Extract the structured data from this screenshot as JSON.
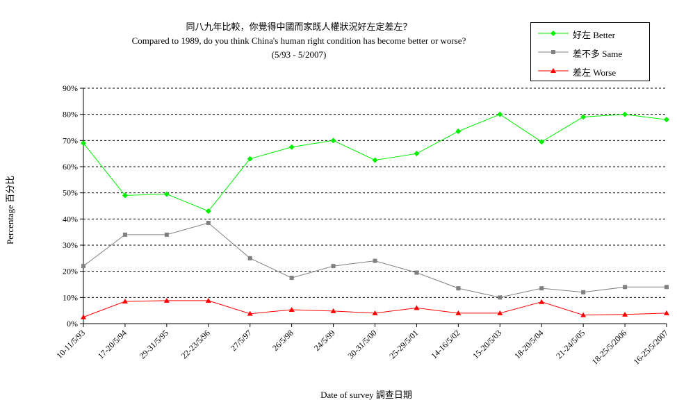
{
  "chart_data": {
    "type": "line",
    "title": "同八九年比較，你覺得中國而家既人權狀況好左定差左？",
    "subtitle": "Compared to 1989, do you think China's human right condition has become better or worse?",
    "period": "(5/93 - 5/2007)",
    "xlabel": "Date of survey  調查日期",
    "ylabel": "Percentage  百分比",
    "ylim": [
      0,
      90
    ],
    "y_ticks": [
      "0%",
      "10%",
      "20%",
      "30%",
      "40%",
      "50%",
      "60%",
      "70%",
      "80%",
      "90%"
    ],
    "grid": true,
    "legend_position": "top-right",
    "categories": [
      "10-11/5/93",
      "17-20/5/94",
      "29-31/5/95",
      "22-23/5/96",
      "27/5/97",
      "26/5/98",
      "24/5/99",
      "30-31/5/00",
      "25-29/5/01",
      "14-16/5/02",
      "15-20/5/03",
      "18-20/5/04",
      "21-24/5/05",
      "18-25/5/2006",
      "16-25/5/2007"
    ],
    "series": [
      {
        "name": "好左 Better",
        "color": "#00ee00",
        "marker": "diamond",
        "values": [
          69,
          49,
          49.5,
          43,
          63,
          67.5,
          70,
          62.5,
          65,
          73.5,
          80,
          69.5,
          79,
          80,
          78
        ]
      },
      {
        "name": "差不多 Same",
        "color": "#808080",
        "marker": "square",
        "values": [
          22,
          34,
          34,
          38.5,
          25,
          17.5,
          22,
          24,
          19.5,
          13.5,
          10,
          13.5,
          12,
          14,
          14
        ]
      },
      {
        "name": "差左 Worse",
        "color": "#ff0000",
        "marker": "triangle",
        "values": [
          2.5,
          8.5,
          8.8,
          8.8,
          3.8,
          5.3,
          4.8,
          4,
          6,
          4,
          4,
          8.3,
          3.3,
          3.5,
          4
        ]
      }
    ]
  }
}
